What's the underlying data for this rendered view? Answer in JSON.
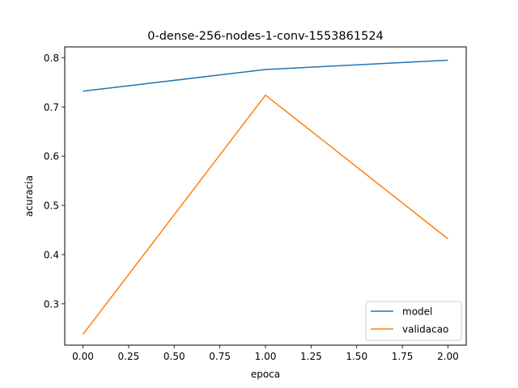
{
  "chart_data": {
    "type": "line",
    "title": "0-dense-256-nodes-1-conv-1553861524",
    "xlabel": "epoca",
    "ylabel": "acuracia",
    "x": [
      0,
      1,
      2
    ],
    "xlim": [
      -0.1,
      2.1
    ],
    "ylim": [
      0.216,
      0.822
    ],
    "xticks": [
      0.0,
      0.25,
      0.5,
      0.75,
      1.0,
      1.25,
      1.5,
      1.75,
      2.0
    ],
    "xtick_labels": [
      "0.00",
      "0.25",
      "0.50",
      "0.75",
      "1.00",
      "1.25",
      "1.50",
      "1.75",
      "2.00"
    ],
    "yticks": [
      0.3,
      0.4,
      0.5,
      0.6,
      0.7,
      0.8
    ],
    "ytick_labels": [
      "0.3",
      "0.4",
      "0.5",
      "0.6",
      "0.7",
      "0.8"
    ],
    "grid": false,
    "legend_position": "lower-right",
    "series": [
      {
        "name": "model",
        "color": "#1f77b4",
        "values": [
          0.732,
          0.776,
          0.795
        ]
      },
      {
        "name": "validacao",
        "color": "#ff7f0e",
        "values": [
          0.238,
          0.724,
          0.432
        ]
      }
    ]
  }
}
